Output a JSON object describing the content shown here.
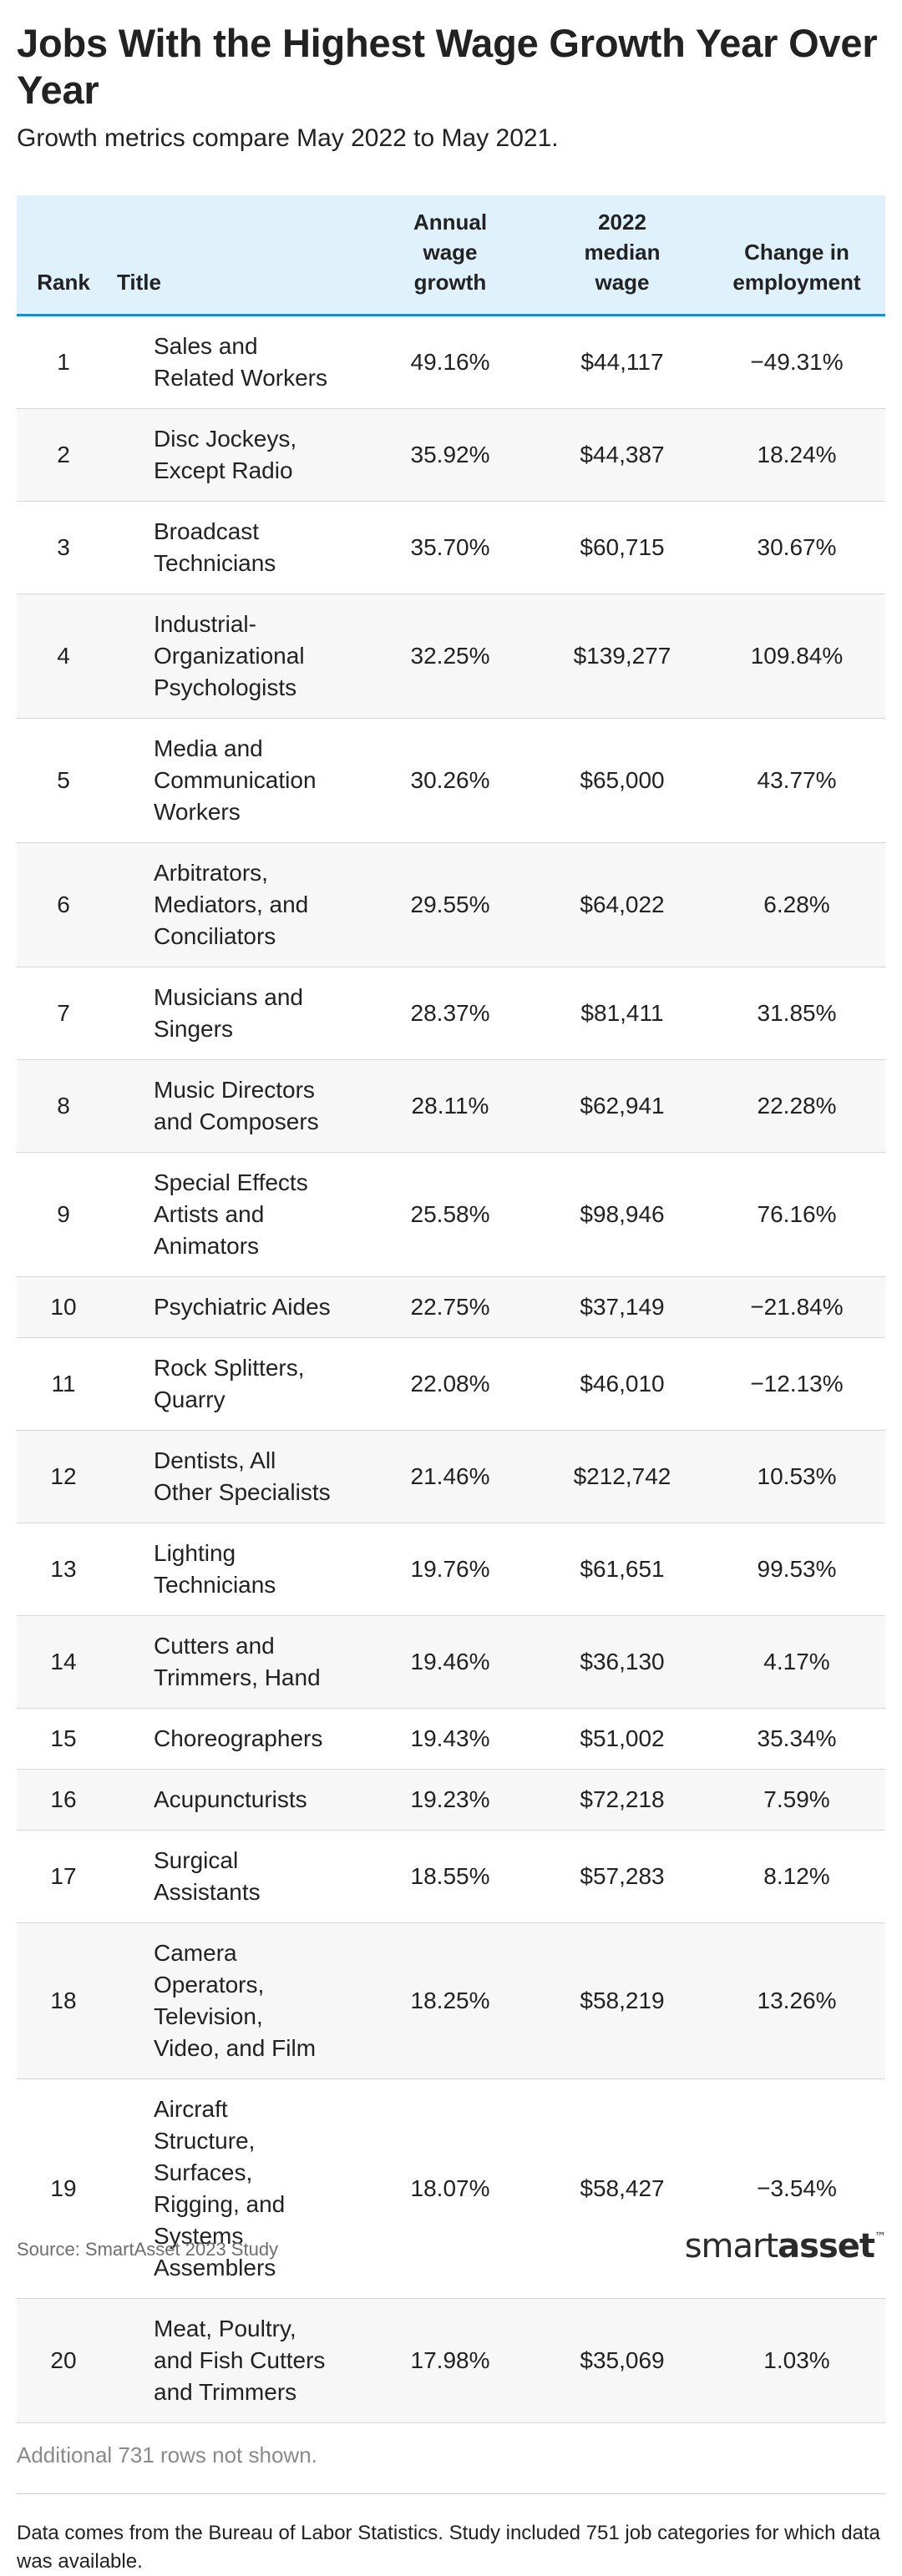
{
  "chart_data": {
    "type": "table",
    "title": "Jobs With the Highest Wage Growth Year Over Year",
    "subtitle": "Growth metrics compare May 2022 to May 2021.",
    "columns": [
      "Rank",
      "Title",
      "Annual wage growth",
      "2022 median wage",
      "Change in employment"
    ],
    "rows": [
      {
        "rank": "1",
        "title": "Sales and Related Workers",
        "growth": "49.16%",
        "wage": "$44,117",
        "emp": "−49.31%"
      },
      {
        "rank": "2",
        "title": "Disc Jockeys, Except Radio",
        "growth": "35.92%",
        "wage": "$44,387",
        "emp": "18.24%"
      },
      {
        "rank": "3",
        "title": "Broadcast Technicians",
        "growth": "35.70%",
        "wage": "$60,715",
        "emp": "30.67%"
      },
      {
        "rank": "4",
        "title": "Industrial-Organizational Psychologists",
        "growth": "32.25%",
        "wage": "$139,277",
        "emp": "109.84%"
      },
      {
        "rank": "5",
        "title": "Media and Communication Workers",
        "growth": "30.26%",
        "wage": "$65,000",
        "emp": "43.77%"
      },
      {
        "rank": "6",
        "title": "Arbitrators, Mediators, and Conciliators",
        "growth": "29.55%",
        "wage": "$64,022",
        "emp": "6.28%"
      },
      {
        "rank": "7",
        "title": "Musicians and Singers",
        "growth": "28.37%",
        "wage": "$81,411",
        "emp": "31.85%"
      },
      {
        "rank": "8",
        "title": "Music Directors and Composers",
        "growth": "28.11%",
        "wage": "$62,941",
        "emp": "22.28%"
      },
      {
        "rank": "9",
        "title": "Special Effects Artists and Animators",
        "growth": "25.58%",
        "wage": "$98,946",
        "emp": "76.16%"
      },
      {
        "rank": "10",
        "title": "Psychiatric Aides",
        "growth": "22.75%",
        "wage": "$37,149",
        "emp": "−21.84%"
      },
      {
        "rank": "11",
        "title": "Rock Splitters, Quarry",
        "growth": "22.08%",
        "wage": "$46,010",
        "emp": "−12.13%"
      },
      {
        "rank": "12",
        "title": "Dentists, All Other Specialists",
        "growth": "21.46%",
        "wage": "$212,742",
        "emp": "10.53%"
      },
      {
        "rank": "13",
        "title": "Lighting Technicians",
        "growth": "19.76%",
        "wage": "$61,651",
        "emp": "99.53%"
      },
      {
        "rank": "14",
        "title": "Cutters and Trimmers, Hand",
        "growth": "19.46%",
        "wage": "$36,130",
        "emp": "4.17%"
      },
      {
        "rank": "15",
        "title": "Choreographers",
        "growth": "19.43%",
        "wage": "$51,002",
        "emp": "35.34%"
      },
      {
        "rank": "16",
        "title": "Acupuncturists",
        "growth": "19.23%",
        "wage": "$72,218",
        "emp": "7.59%"
      },
      {
        "rank": "17",
        "title": "Surgical Assistants",
        "growth": "18.55%",
        "wage": "$57,283",
        "emp": "8.12%"
      },
      {
        "rank": "18",
        "title": "Camera Operators, Television, Video, and Film",
        "growth": "18.25%",
        "wage": "$58,219",
        "emp": "13.26%"
      },
      {
        "rank": "19",
        "title": "Aircraft Structure, Surfaces, Rigging, and Systems Assemblers",
        "growth": "18.07%",
        "wage": "$58,427",
        "emp": "−3.54%"
      },
      {
        "rank": "20",
        "title": "Meat, Poultry, and Fish Cutters and Trimmers",
        "growth": "17.98%",
        "wage": "$35,069",
        "emp": "1.03%"
      }
    ],
    "header_band_color": "#dff2fc",
    "header_rule_color": "#1d8ac9"
  },
  "notes": {
    "rows_hidden": "Additional 731 rows not shown.",
    "footnote": "Data comes from the Bureau of Labor Statistics. Study included 751 job categories for which data was available.",
    "source": "Source: SmartAsset 2023 Study"
  },
  "logo": {
    "part1": "smart",
    "part2": "asset",
    "mark": "™"
  }
}
